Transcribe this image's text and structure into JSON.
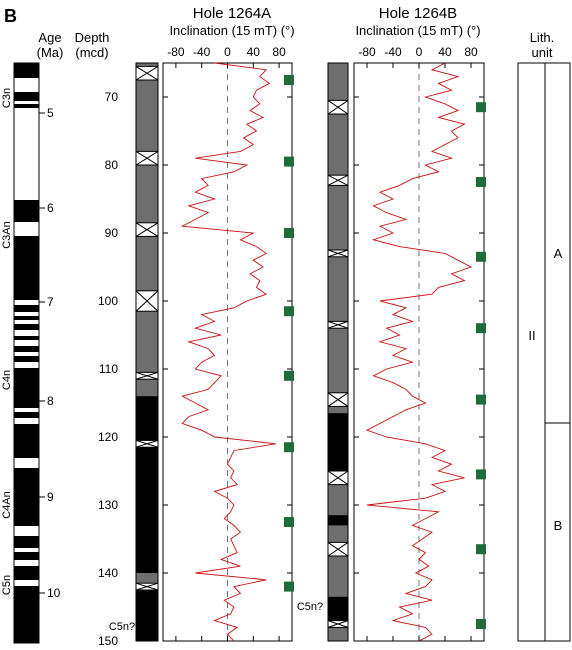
{
  "panel_label": "B",
  "headers": {
    "age_line1": "Age",
    "age_line2": "(Ma)",
    "depth_line1": "Depth",
    "depth_line2": "(mcd)",
    "lith_line1": "Lith.",
    "lith_line2": "unit"
  },
  "colors": {
    "trace": "#cc1111",
    "marker": "#1f6b3a",
    "core_gray": "#6e6e6e",
    "normal_polarity": "#000000"
  },
  "chart_data": [
    {
      "type": "line",
      "title": "Hole 1264A",
      "xlabel": "Inclination (15 mT) (°)",
      "ylabel": "Depth (mcd)",
      "xlim": [
        -100,
        100
      ],
      "xticks": [
        -80,
        -40,
        0,
        40,
        80
      ],
      "ylim": [
        65,
        150
      ],
      "yticks": [
        70,
        80,
        90,
        100,
        110,
        120,
        130,
        140,
        150
      ],
      "zero_line": "dashed",
      "section_break_markers_depth": [
        67.5,
        79.5,
        90,
        101.5,
        111,
        121.5,
        132.5,
        142
      ],
      "core_gaps_depth": [
        [
          65.5,
          67.5
        ],
        [
          78,
          80
        ],
        [
          88.5,
          90.5
        ],
        [
          98.5,
          101.5
        ],
        [
          110.5,
          111.5
        ],
        [
          120.5,
          121.5
        ],
        [
          141.5,
          142.5
        ]
      ],
      "core_black_intervals_depth": [
        [
          114,
          120.5
        ],
        [
          121.5,
          140
        ],
        [
          142.5,
          150
        ]
      ],
      "chron_label": "C5n?",
      "series": [
        {
          "depth": [
            65,
            66,
            67,
            68,
            69,
            70,
            71,
            72,
            73,
            74,
            75,
            76,
            77,
            78,
            79,
            80,
            81,
            82,
            83,
            84,
            85,
            86,
            87,
            88,
            89,
            90,
            91,
            92,
            93,
            94,
            95,
            96,
            97,
            98,
            99,
            100,
            101,
            102,
            103,
            104,
            105,
            106,
            107,
            108,
            109,
            110,
            111,
            112,
            113,
            114,
            115,
            116,
            117,
            118,
            119,
            120,
            121,
            122,
            123,
            124,
            125,
            126,
            127,
            128,
            129,
            130,
            131,
            132,
            133,
            134,
            135,
            136,
            137,
            138,
            139,
            140,
            141,
            142,
            143,
            144,
            145,
            146,
            147,
            148,
            149,
            150
          ],
          "inclination": [
            -20,
            60,
            50,
            65,
            45,
            40,
            50,
            35,
            55,
            30,
            45,
            25,
            40,
            20,
            -50,
            30,
            10,
            -40,
            -30,
            -50,
            -20,
            -60,
            -30,
            -50,
            -70,
            40,
            20,
            45,
            60,
            40,
            55,
            35,
            50,
            45,
            60,
            30,
            10,
            -40,
            -20,
            -50,
            -10,
            -60,
            -30,
            -20,
            -40,
            -50,
            -10,
            -20,
            -30,
            -70,
            -50,
            -30,
            -60,
            -70,
            -40,
            -20,
            75,
            10,
            5,
            0,
            10,
            5,
            15,
            -20,
            0,
            10,
            5,
            -5,
            10,
            20,
            5,
            10,
            15,
            -10,
            20,
            -50,
            60,
            10,
            20,
            -5,
            10,
            5,
            -20,
            15,
            0,
            10
          ]
        }
      ]
    },
    {
      "type": "line",
      "title": "Hole 1264B",
      "xlabel": "Inclination (15 mT) (°)",
      "ylabel": "Depth (mcd)",
      "xlim": [
        -100,
        100
      ],
      "xticks": [
        -80,
        -40,
        0,
        40,
        80
      ],
      "ylim": [
        65,
        150
      ],
      "yticks": [
        70,
        80,
        90,
        100,
        110,
        120,
        130,
        140,
        150
      ],
      "zero_line": "dashed",
      "section_break_markers_depth": [
        71.5,
        82.5,
        93.5,
        104,
        114.5,
        125.5,
        136.5,
        147.5
      ],
      "core_gaps_depth": [
        [
          70.5,
          72.5
        ],
        [
          81.5,
          83
        ],
        [
          92.5,
          93.5
        ],
        [
          103,
          104
        ],
        [
          113.5,
          115.5
        ],
        [
          125,
          127
        ],
        [
          135.5,
          137.5
        ],
        [
          147,
          148
        ]
      ],
      "core_black_intervals_depth": [
        [
          116.5,
          125
        ],
        [
          131.5,
          133
        ],
        [
          143.5,
          147
        ]
      ],
      "chron_label": "C5n?",
      "series": [
        {
          "depth": [
            65,
            66,
            67,
            68,
            69,
            70,
            71,
            72,
            73,
            74,
            75,
            76,
            77,
            78,
            79,
            80,
            81,
            82,
            83,
            84,
            85,
            86,
            87,
            88,
            89,
            90,
            91,
            92,
            93,
            94,
            95,
            96,
            97,
            98,
            99,
            100,
            101,
            102,
            103,
            104,
            105,
            106,
            107,
            108,
            109,
            110,
            111,
            112,
            113,
            114,
            115,
            116,
            117,
            118,
            119,
            120,
            121,
            122,
            123,
            124,
            125,
            126,
            127,
            128,
            129,
            130,
            131,
            132,
            133,
            134,
            135,
            136,
            137,
            138,
            139,
            140,
            141,
            142,
            143,
            144,
            145,
            146,
            147,
            148,
            149,
            150
          ],
          "inclination": [
            40,
            20,
            60,
            30,
            50,
            10,
            40,
            60,
            30,
            70,
            50,
            60,
            40,
            20,
            50,
            10,
            30,
            -10,
            -30,
            -60,
            -40,
            -70,
            -50,
            -20,
            -60,
            -40,
            -70,
            -30,
            40,
            60,
            80,
            50,
            70,
            30,
            20,
            -60,
            -20,
            -40,
            -10,
            -50,
            -30,
            -60,
            -20,
            -40,
            -10,
            -50,
            -70,
            -40,
            -20,
            -10,
            10,
            -20,
            -40,
            -60,
            -80,
            -50,
            10,
            40,
            20,
            50,
            30,
            70,
            20,
            40,
            10,
            -80,
            30,
            10,
            -10,
            20,
            5,
            -10,
            10,
            0,
            15,
            -5,
            20,
            10,
            -20,
            20,
            -30,
            -10,
            -40,
            10,
            20,
            0
          ]
        }
      ]
    }
  ],
  "age_scale": {
    "label_values": [
      "5",
      "6",
      "7",
      "8",
      "9",
      "10"
    ],
    "label_depths": [
      113,
      208,
      302,
      401,
      497,
      593
    ],
    "chrons": [
      {
        "name": "C3n",
        "center": 98
      },
      {
        "name": "C3An",
        "center": 235
      },
      {
        "name": "C4n",
        "center": 380
      },
      {
        "name": "C4An",
        "center": 505
      },
      {
        "name": "C5n",
        "center": 585
      }
    ]
  },
  "lith": {
    "unit_label": "II",
    "subunits": [
      "A",
      "B"
    ]
  }
}
